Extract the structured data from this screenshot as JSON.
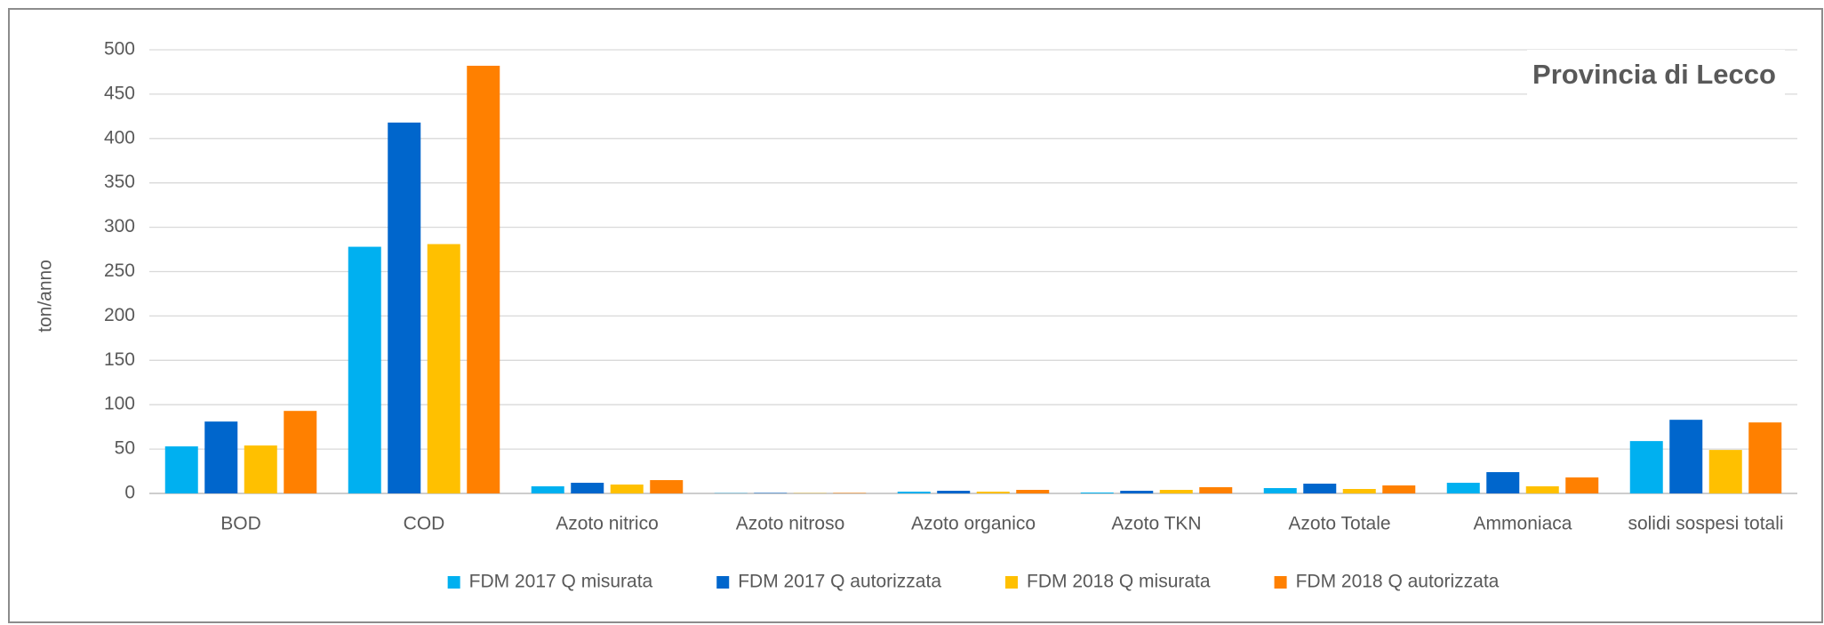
{
  "chart_data": {
    "type": "bar",
    "title": "Provincia di Lecco",
    "ylabel": "ton/anno",
    "categories": [
      "BOD",
      "COD",
      "Azoto nitrico",
      "Azoto nitroso",
      "Azoto organico",
      "Azoto TKN",
      "Azoto Totale",
      "Ammoniaca",
      "solidi sospesi totali"
    ],
    "series": [
      {
        "name": "FDM 2017 Q misurata",
        "color": "#00b0f0",
        "values": [
          53,
          278,
          8,
          0.3,
          2,
          1,
          6,
          12,
          59
        ]
      },
      {
        "name": "FDM 2017 Q autorizzata",
        "color": "#0066cc",
        "values": [
          81,
          418,
          12,
          0.5,
          3,
          3,
          11,
          24,
          83
        ]
      },
      {
        "name": "FDM 2018 Q misurata",
        "color": "#ffc000",
        "values": [
          54,
          281,
          10,
          0.3,
          2,
          4,
          5,
          8,
          49
        ]
      },
      {
        "name": "FDM 2018 Q autorizzata",
        "color": "#ff8000",
        "values": [
          93,
          482,
          15,
          0.5,
          4,
          7,
          9,
          18,
          80
        ]
      }
    ],
    "ylim": [
      0,
      500
    ],
    "yticks": [
      0,
      50,
      100,
      150,
      200,
      250,
      300,
      350,
      400,
      450,
      500
    ],
    "grid": true,
    "legend": "bottom"
  }
}
